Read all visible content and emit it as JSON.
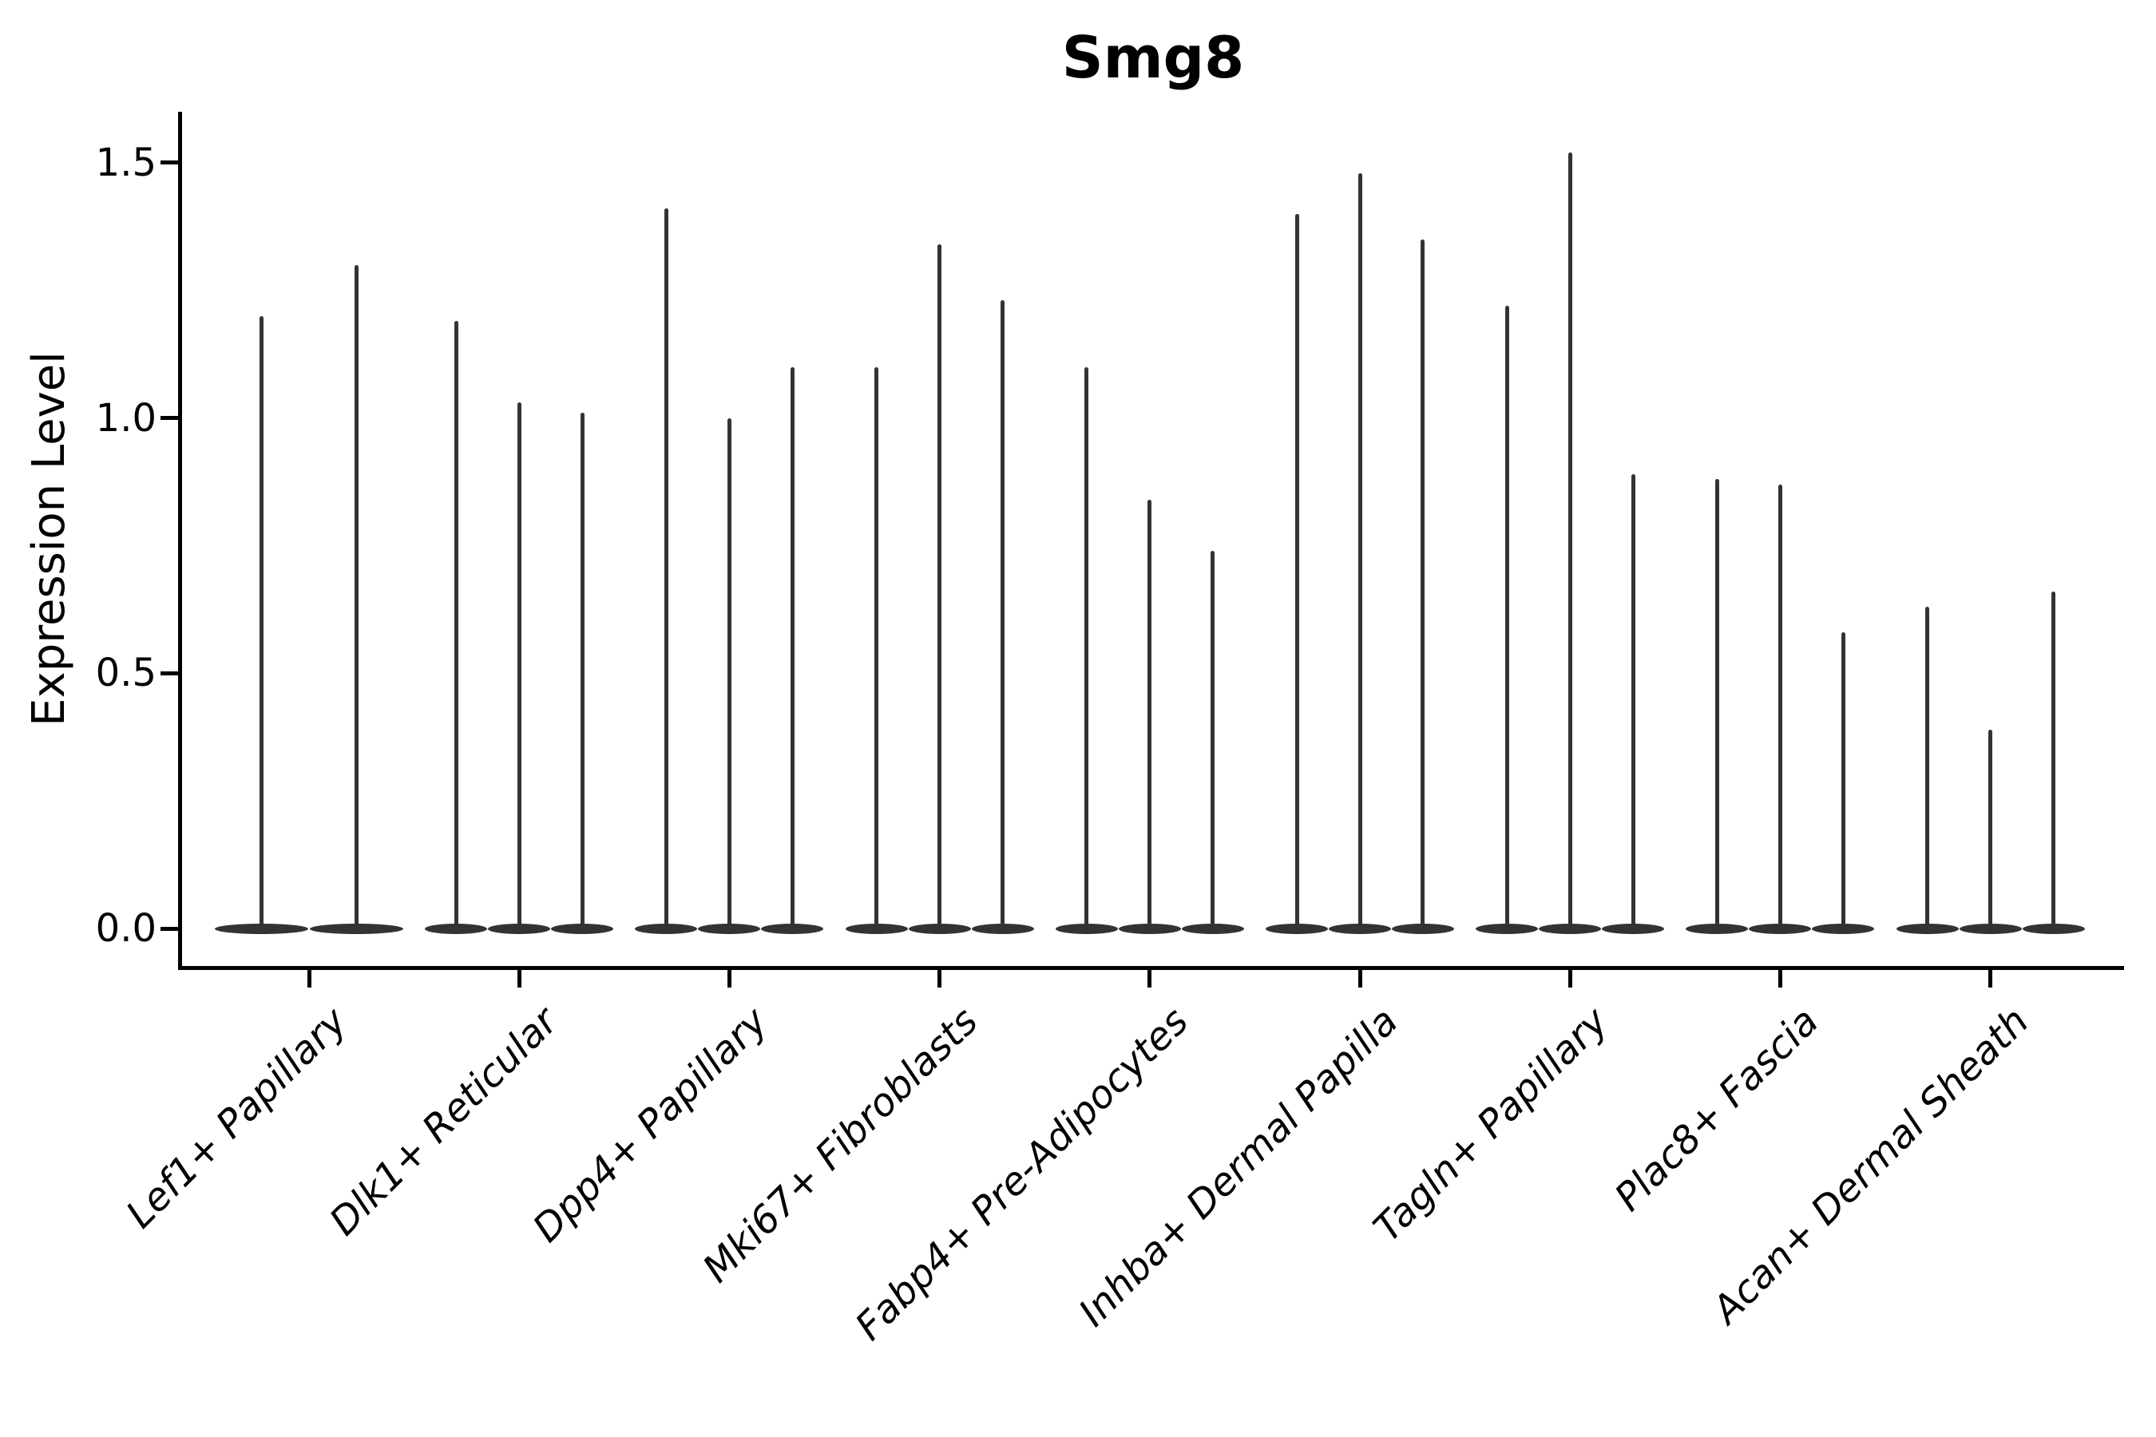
{
  "chart": {
    "title": "Smg8",
    "ylabel": "Expression Level"
  },
  "chart_data": {
    "type": "violin",
    "title": "Smg8",
    "xlabel": "",
    "ylabel": "Expression Level",
    "yticks": [
      0.0,
      0.5,
      1.0,
      1.5
    ],
    "ylim": [
      -0.07,
      1.6
    ],
    "grid": false,
    "legend_position": "none",
    "shape_note": "each violin's density is concentrated at 0 (flat lens at baseline) with a thin vertical spike reaching its maximum expression value",
    "categories": [
      "Lef1+ Papillary",
      "Dlk1+ Reticular",
      "Dpp4+ Papillary",
      "Mki67+ Fibroblasts",
      "Fabp4+ Pre-Adipocytes",
      "Inhba+ Dermal Papilla",
      "Tagln+ Papillary",
      "Plac8+ Fascia",
      "Acan+ Dermal Sheath"
    ],
    "groups": [
      {
        "category": "Lef1+ Papillary",
        "violin_max_expression": [
          1.2,
          1.3
        ]
      },
      {
        "category": "Dlk1+ Reticular",
        "violin_max_expression": [
          1.19,
          1.03,
          1.01
        ]
      },
      {
        "category": "Dpp4+ Papillary",
        "violin_max_expression": [
          1.41,
          1.0,
          1.1
        ]
      },
      {
        "category": "Mki67+ Fibroblasts",
        "violin_max_expression": [
          1.1,
          1.34,
          1.23
        ]
      },
      {
        "category": "Fabp4+ Pre-Adipocytes",
        "violin_max_expression": [
          1.1,
          0.84,
          0.74
        ]
      },
      {
        "category": "Inhba+ Dermal Papilla",
        "violin_max_expression": [
          1.4,
          1.48,
          1.35
        ]
      },
      {
        "category": "Tagln+ Papillary",
        "violin_max_expression": [
          1.22,
          1.52,
          0.89
        ]
      },
      {
        "category": "Plac8+ Fascia",
        "violin_max_expression": [
          0.88,
          0.87,
          0.58
        ]
      },
      {
        "category": "Acan+ Dermal Sheath",
        "violin_max_expression": [
          0.63,
          0.39,
          0.66
        ]
      }
    ],
    "colors": {
      "violin": "#333333",
      "axis": "#000000",
      "background": "#ffffff"
    }
  }
}
